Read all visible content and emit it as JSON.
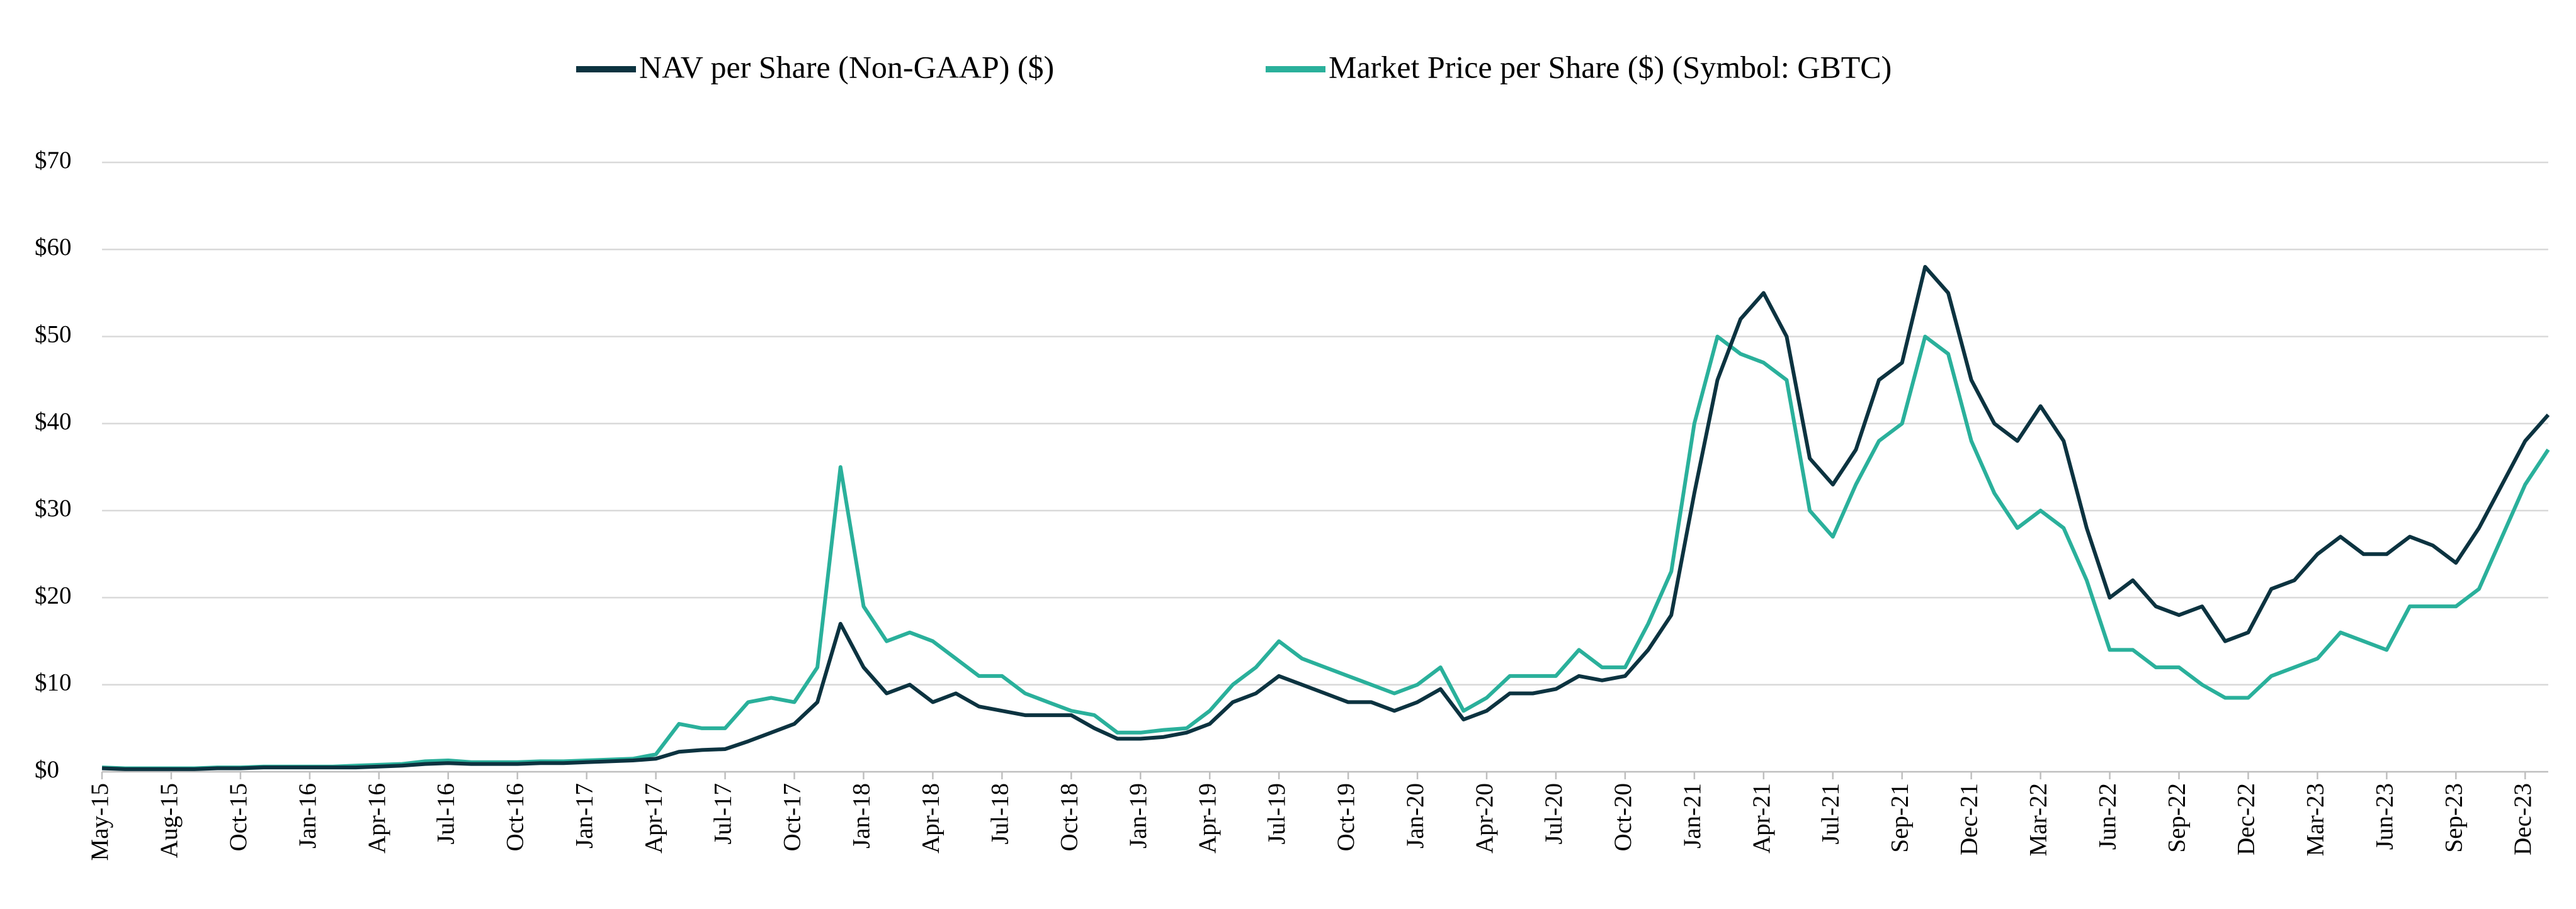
{
  "chart_data": {
    "type": "line",
    "categories": [
      "May-15",
      null,
      null,
      "Aug-15",
      null,
      null,
      "Oct-15",
      null,
      null,
      "Jan-16",
      null,
      null,
      "Apr-16",
      null,
      null,
      "Jul-16",
      null,
      null,
      "Oct-16",
      null,
      null,
      "Jan-17",
      null,
      null,
      "Apr-17",
      null,
      null,
      "Jul-17",
      null,
      null,
      "Oct-17",
      null,
      null,
      "Jan-18",
      null,
      null,
      "Apr-18",
      null,
      null,
      "Jul-18",
      null,
      null,
      "Oct-18",
      null,
      null,
      "Jan-19",
      null,
      null,
      "Apr-19",
      null,
      null,
      "Jul-19",
      null,
      null,
      "Oct-19",
      null,
      null,
      "Jan-20",
      null,
      null,
      "Apr-20",
      null,
      null,
      "Jul-20",
      null,
      null,
      "Oct-20",
      null,
      null,
      "Jan-21",
      null,
      null,
      "Apr-21",
      null,
      null,
      "Jul-21",
      null,
      null,
      "Sep-21",
      null,
      null,
      "Dec-21",
      null,
      null,
      "Mar-22",
      null,
      null,
      "Jun-22",
      null,
      null,
      "Sep-22",
      null,
      null,
      "Dec-22",
      null,
      null,
      "Mar-23",
      null,
      null,
      "Jun-23",
      null,
      null,
      "Sep-23",
      null,
      null,
      "Dec-23",
      null
    ],
    "series": [
      {
        "name": "NAV per Share (Non-GAAP) ($)",
        "color": "#0c3340",
        "values": [
          0.4,
          0.3,
          0.3,
          0.3,
          0.3,
          0.4,
          0.4,
          0.5,
          0.5,
          0.5,
          0.5,
          0.5,
          0.6,
          0.7,
          0.9,
          1.0,
          0.9,
          0.9,
          0.9,
          1.0,
          1.0,
          1.1,
          1.2,
          1.3,
          1.5,
          2.3,
          2.5,
          2.6,
          3.5,
          4.5,
          5.5,
          8,
          17,
          12,
          9,
          10,
          8,
          9,
          7.5,
          7,
          6.5,
          6.5,
          6.5,
          5,
          3.8,
          3.8,
          4,
          4.5,
          5.5,
          8,
          9,
          11,
          10,
          9,
          8,
          8,
          7,
          8,
          9.5,
          6,
          7,
          9,
          9,
          9.5,
          11,
          10.5,
          11,
          14,
          18,
          32,
          45,
          52,
          55,
          50,
          36,
          33,
          37,
          45,
          47,
          58,
          55,
          45,
          40,
          38,
          42,
          38,
          28,
          20,
          22,
          19,
          18,
          19,
          15,
          16,
          21,
          22,
          25,
          27,
          25,
          25,
          27,
          26,
          24,
          28,
          33,
          38,
          41
        ]
      },
      {
        "name": "Market Price per Share ($) (Symbol: GBTC)",
        "color": "#2ab09b",
        "values": [
          0.5,
          0.4,
          0.4,
          0.4,
          0.4,
          0.5,
          0.5,
          0.6,
          0.6,
          0.6,
          0.6,
          0.7,
          0.8,
          0.9,
          1.2,
          1.3,
          1.1,
          1.1,
          1.1,
          1.2,
          1.2,
          1.3,
          1.4,
          1.5,
          2.0,
          5.5,
          5,
          5,
          8,
          8.5,
          8,
          12,
          35,
          19,
          15,
          16,
          15,
          13,
          11,
          11,
          9,
          8,
          7,
          6.5,
          4.5,
          4.5,
          4.8,
          5,
          7,
          10,
          12,
          15,
          13,
          12,
          11,
          10,
          9,
          10,
          12,
          7,
          8.5,
          11,
          11,
          11,
          14,
          12,
          12,
          17,
          23,
          40,
          50,
          48,
          47,
          45,
          30,
          27,
          33,
          38,
          40,
          50,
          48,
          38,
          32,
          28,
          30,
          28,
          22,
          14,
          14,
          12,
          12,
          10,
          8.5,
          8.5,
          11,
          12,
          13,
          16,
          15,
          14,
          19,
          19,
          19,
          21,
          27,
          33,
          37
        ]
      }
    ],
    "ylim": [
      0,
      70
    ],
    "yticks": [
      {
        "value": 0,
        "label": "$0"
      },
      {
        "value": 10,
        "label": "$10"
      },
      {
        "value": 20,
        "label": "$20"
      },
      {
        "value": 30,
        "label": "$30"
      },
      {
        "value": 40,
        "label": "$40"
      },
      {
        "value": 50,
        "label": "$50"
      },
      {
        "value": 60,
        "label": "$60"
      },
      {
        "value": 70,
        "label": "$70"
      }
    ],
    "grid": true
  }
}
